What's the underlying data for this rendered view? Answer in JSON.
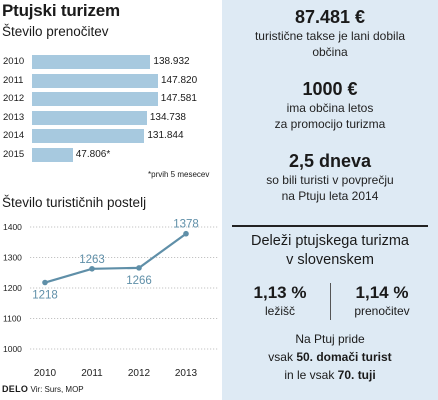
{
  "title": "Ptujski turizem",
  "overnight": {
    "subtitle": "Število prenočitev",
    "note": "*prvih 5 mesecev",
    "color": "#a7c9df"
  },
  "beds": {
    "subtitle": "Število turističnih postelj",
    "line_color": "#5f8fa8"
  },
  "chart_data": [
    {
      "type": "bar",
      "orientation": "horizontal",
      "title": "Število prenočitev",
      "categories": [
        "2010",
        "2011",
        "2012",
        "2013",
        "2014",
        "2015"
      ],
      "values": [
        138932,
        147820,
        147581,
        134738,
        131844,
        47806
      ],
      "value_labels": [
        "138.932",
        "147.820",
        "147.581",
        "134.738",
        "131.844",
        "47.806*"
      ]
    },
    {
      "type": "line",
      "title": "Število turističnih postelj",
      "x": [
        "2010",
        "2011",
        "2012",
        "2013"
      ],
      "values": [
        1218,
        1263,
        1266,
        1378
      ],
      "value_labels": [
        "1218",
        "1263",
        "1266",
        "1378"
      ],
      "y_ticks": [
        "1400",
        "1300",
        "1200",
        "1100",
        "1000"
      ],
      "ylim": [
        1000,
        1400
      ],
      "grid": true
    }
  ],
  "facts": [
    {
      "big": "87.481 €",
      "lines": [
        "turistične takse je lani dobila",
        "občina"
      ]
    },
    {
      "big": "1000 €",
      "lines": [
        "ima občina letos",
        "za promocijo turizma"
      ]
    },
    {
      "big": "2,5 dneva",
      "lines": [
        "so bili turisti v povprečju",
        "na Ptuju leta 2014"
      ]
    }
  ],
  "shares": {
    "title_lines": [
      "Deleži ptujskega turizma",
      "v slovenskem"
    ],
    "items": [
      {
        "pct": "1,13 %",
        "label": "ležišč"
      },
      {
        "pct": "1,14 %",
        "label": "prenočitev"
      }
    ]
  },
  "closing": {
    "line1": "Na Ptuj pride",
    "line2_pre": "vsak ",
    "line2_bold": "50. domači turist",
    "line3_pre": "in le vsak ",
    "line3_bold": "70. tuji"
  },
  "footer": {
    "brand": "DELO",
    "source": "Vir: Surs, MOP"
  }
}
